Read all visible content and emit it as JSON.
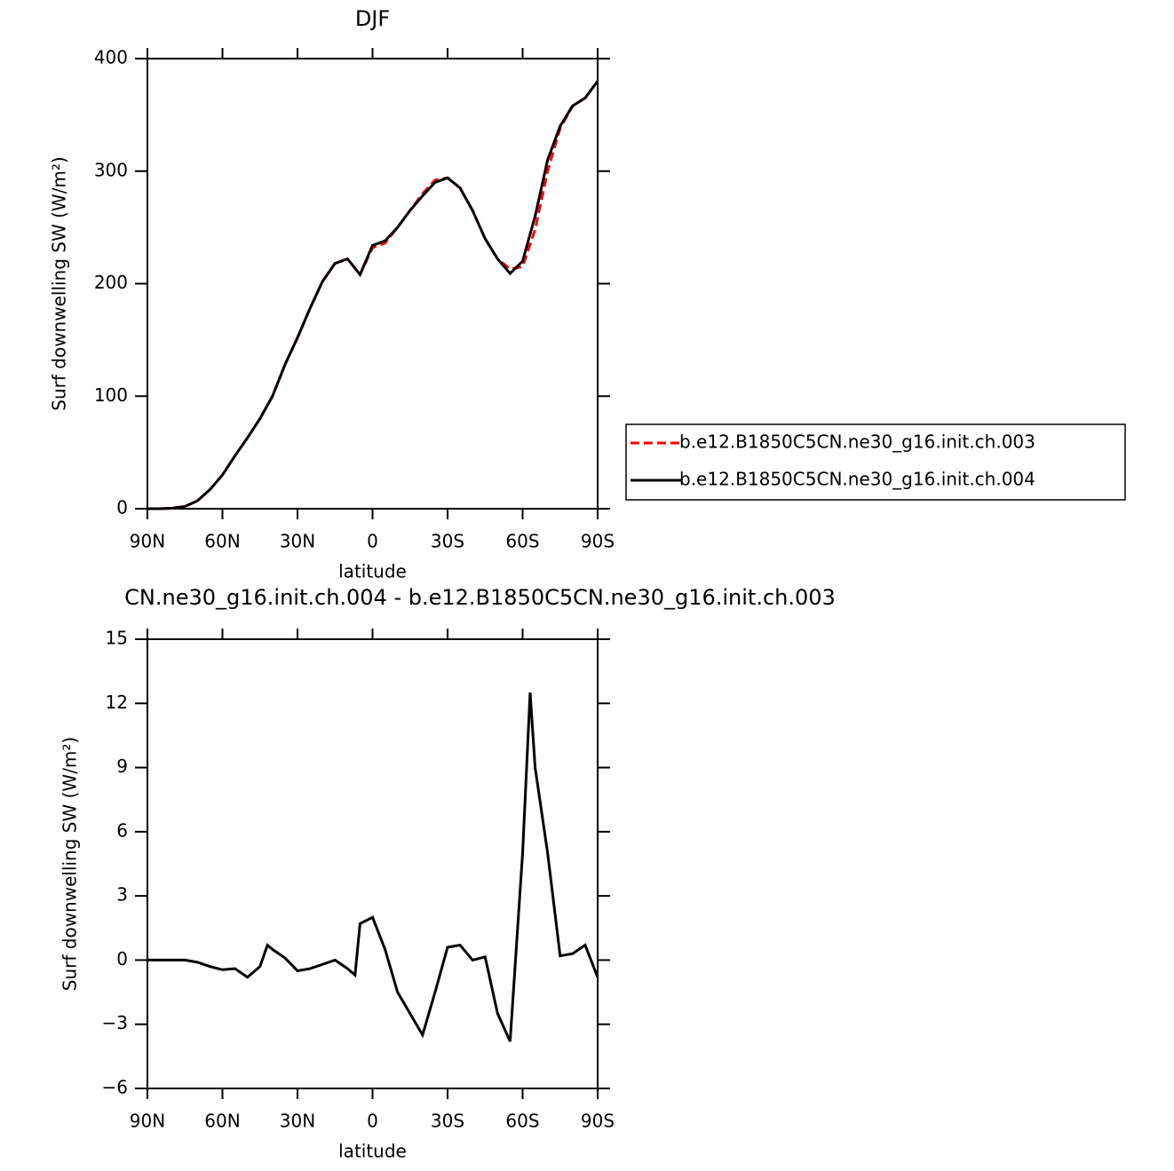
{
  "chart_data": [
    {
      "type": "line",
      "title": "DJF",
      "xlabel": "latitude",
      "ylabel": "Surf downwelling SW (W/m²)",
      "x": [
        90,
        85,
        80,
        75,
        70,
        65,
        60,
        55,
        50,
        45,
        40,
        35,
        30,
        25,
        20,
        15,
        10,
        5,
        0,
        -5,
        -10,
        -15,
        -20,
        -25,
        -30,
        -35,
        -40,
        -45,
        -50,
        -55,
        -60,
        -65,
        -70,
        -75,
        -80,
        -85,
        -90
      ],
      "series": [
        {
          "name": "b.e12.B1850C5CN.ne30_g16.init.ch.003",
          "color": "#ff0000",
          "linestyle": "dashed",
          "values": [
            0,
            0,
            0.5,
            2,
            7,
            17,
            30,
            47,
            63,
            80,
            100,
            128,
            152,
            178,
            202,
            218,
            222,
            208,
            232,
            236,
            250,
            265,
            280,
            292,
            294,
            285,
            265,
            240,
            222,
            213,
            215,
            248,
            300,
            338,
            358,
            365,
            380
          ]
        },
        {
          "name": "b.e12.B1850C5CN.ne30_g16.init.ch.004",
          "color": "#000000",
          "linestyle": "solid",
          "values": [
            0,
            0,
            0.5,
            2,
            7,
            17,
            30,
            47,
            63,
            80,
            100,
            128,
            152,
            178,
            202,
            218,
            222,
            208,
            234,
            238,
            250,
            265,
            278,
            290,
            294,
            285,
            265,
            240,
            222,
            209,
            220,
            260,
            310,
            340,
            358,
            365,
            380
          ]
        }
      ],
      "xlim": [
        90,
        -90
      ],
      "xticks": [
        {
          "value": 90,
          "label": "90N"
        },
        {
          "value": 60,
          "label": "60N"
        },
        {
          "value": 30,
          "label": "30N"
        },
        0,
        {
          "value": -30,
          "label": "30S"
        },
        {
          "value": -60,
          "label": "60S"
        },
        {
          "value": -90,
          "label": "90S"
        }
      ],
      "ylim": [
        0,
        400
      ],
      "yticks": [
        0,
        100,
        200,
        300,
        400
      ],
      "legend": "right"
    },
    {
      "type": "line",
      "title": "CN.ne30_g16.init.ch.004 - b.e12.B1850C5CN.ne30_g16.init.ch.003",
      "xlabel": "latitude",
      "ylabel": "Surf downwelling SW (W/m²)",
      "x": [
        90,
        85,
        80,
        75,
        70,
        65,
        60,
        55,
        50,
        45,
        42,
        40,
        35,
        30,
        25,
        20,
        15,
        10,
        7,
        5,
        0,
        -5,
        -10,
        -15,
        -20,
        -25,
        -30,
        -35,
        -40,
        -45,
        -50,
        -55,
        -60,
        -63,
        -65,
        -70,
        -75,
        -80,
        -85,
        -90
      ],
      "series": [
        {
          "name": "diff",
          "color": "#000000",
          "linestyle": "solid",
          "values": [
            0,
            0,
            0,
            0,
            -0.1,
            -0.3,
            -0.45,
            -0.4,
            -0.8,
            -0.3,
            0.7,
            0.5,
            0.1,
            -0.5,
            -0.4,
            -0.2,
            0,
            -0.4,
            -0.7,
            1.7,
            2.0,
            0.5,
            -1.5,
            -2.5,
            -3.5,
            -1.5,
            0.6,
            0.7,
            0,
            0.15,
            -2.5,
            -3.8,
            5,
            12.5,
            9,
            5,
            0.2,
            0.3,
            0.7,
            -0.8
          ]
        }
      ],
      "xlim": [
        90,
        -90
      ],
      "xticks": [
        {
          "value": 90,
          "label": "90N"
        },
        {
          "value": 60,
          "label": "60N"
        },
        {
          "value": 30,
          "label": "30N"
        },
        0,
        {
          "value": -30,
          "label": "30S"
        },
        {
          "value": -60,
          "label": "60S"
        },
        {
          "value": -90,
          "label": "90S"
        }
      ],
      "ylim": [
        -6,
        15
      ],
      "yticks": [
        {
          "value": -6,
          "label": "−6"
        },
        {
          "value": -3,
          "label": "−3"
        },
        0,
        3,
        6,
        9,
        12,
        15
      ]
    }
  ]
}
